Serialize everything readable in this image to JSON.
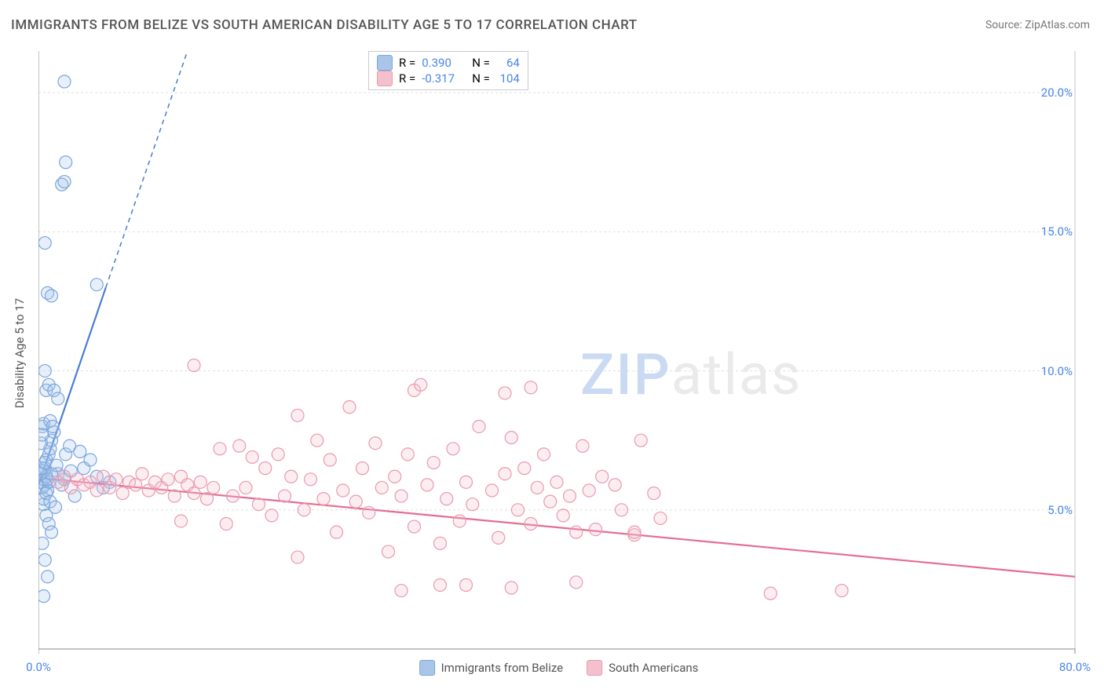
{
  "title": "IMMIGRANTS FROM BELIZE VS SOUTH AMERICAN DISABILITY AGE 5 TO 17 CORRELATION CHART",
  "source_label": "Source:",
  "source_name": "ZipAtlas.com",
  "ylabel": "Disability Age 5 to 17",
  "watermark_zip": "ZIP",
  "watermark_atlas": "atlas",
  "chart": {
    "type": "scatter",
    "xlim": [
      0,
      80
    ],
    "ylim": [
      0,
      21.5
    ],
    "x_ticks": [
      0,
      80
    ],
    "x_tick_labels": [
      "0.0%",
      "80.0%"
    ],
    "y_ticks": [
      5,
      10,
      15,
      20
    ],
    "y_tick_labels": [
      "5.0%",
      "10.0%",
      "15.0%",
      "20.0%"
    ],
    "grid_color": "#e0e0e0",
    "axis_color": "#888888",
    "background_color": "#ffffff",
    "marker_radius": 8,
    "marker_stroke_width": 1.2,
    "marker_fill_opacity": 0.28,
    "title_fontsize": 17,
    "label_fontsize": 15,
    "tick_color": "#4a86e8"
  },
  "series": [
    {
      "name": "Immigrants from Belize",
      "color_stroke": "#7aa6de",
      "color_fill": "#a9c6ea",
      "R": "0.390",
      "N": "64",
      "trend": {
        "solid": {
          "x1": 0,
          "y1": 5.9,
          "x2": 5.2,
          "y2": 13.0
        },
        "dashed": {
          "x1": 5.2,
          "y1": 13.0,
          "x2": 11.5,
          "y2": 21.5
        }
      },
      "line_color": "#4a7fd0",
      "line_width": 2.2,
      "dash": "6,5",
      "points": [
        [
          0.2,
          6.0
        ],
        [
          0.3,
          5.8
        ],
        [
          0.4,
          6.1
        ],
        [
          0.5,
          5.9
        ],
        [
          0.6,
          6.2
        ],
        [
          0.7,
          5.7
        ],
        [
          0.8,
          6.0
        ],
        [
          0.4,
          6.4
        ],
        [
          0.5,
          6.5
        ],
        [
          0.6,
          6.8
        ],
        [
          0.8,
          7.0
        ],
        [
          0.9,
          7.2
        ],
        [
          1.0,
          7.5
        ],
        [
          1.2,
          7.8
        ],
        [
          0.3,
          8.0
        ],
        [
          0.4,
          8.1
        ],
        [
          0.9,
          8.2
        ],
        [
          1.1,
          8.0
        ],
        [
          0.4,
          5.2
        ],
        [
          0.6,
          4.8
        ],
        [
          0.8,
          4.5
        ],
        [
          1.0,
          4.2
        ],
        [
          0.3,
          3.8
        ],
        [
          0.5,
          3.2
        ],
        [
          0.7,
          2.6
        ],
        [
          0.4,
          1.9
        ],
        [
          1.5,
          6.3
        ],
        [
          1.8,
          5.9
        ],
        [
          2.0,
          6.1
        ],
        [
          2.5,
          6.4
        ],
        [
          2.8,
          5.5
        ],
        [
          3.2,
          7.1
        ],
        [
          3.5,
          6.5
        ],
        [
          0.6,
          9.3
        ],
        [
          0.8,
          9.5
        ],
        [
          1.2,
          9.3
        ],
        [
          1.5,
          9.0
        ],
        [
          0.5,
          10.0
        ],
        [
          2.1,
          7.0
        ],
        [
          2.4,
          7.3
        ],
        [
          0.7,
          12.8
        ],
        [
          1.0,
          12.7
        ],
        [
          0.5,
          14.6
        ],
        [
          1.8,
          16.7
        ],
        [
          2.0,
          16.8
        ],
        [
          2.1,
          17.5
        ],
        [
          4.5,
          13.1
        ],
        [
          2.0,
          20.4
        ],
        [
          4.0,
          6.8
        ],
        [
          4.5,
          6.2
        ],
        [
          5.0,
          5.8
        ],
        [
          5.5,
          6.0
        ],
        [
          0.4,
          5.4
        ],
        [
          0.6,
          5.6
        ],
        [
          0.9,
          5.3
        ],
        [
          1.3,
          5.1
        ],
        [
          0.2,
          6.3
        ],
        [
          0.3,
          6.5
        ],
        [
          0.5,
          6.7
        ],
        [
          0.7,
          6.1
        ],
        [
          1.0,
          6.3
        ],
        [
          1.4,
          6.6
        ],
        [
          0.2,
          7.4
        ],
        [
          0.3,
          7.7
        ]
      ]
    },
    {
      "name": "South Americans",
      "color_stroke": "#e89ab0",
      "color_fill": "#f3c0ce",
      "R": "-0.317",
      "N": "104",
      "trend": {
        "solid": {
          "x1": 0,
          "y1": 6.15,
          "x2": 80,
          "y2": 2.6
        }
      },
      "line_color": "#e56d94",
      "line_width": 2.2,
      "points": [
        [
          1.5,
          6.0
        ],
        [
          2.0,
          6.2
        ],
        [
          2.5,
          5.8
        ],
        [
          3.0,
          6.1
        ],
        [
          3.5,
          5.9
        ],
        [
          4.0,
          6.0
        ],
        [
          4.5,
          5.7
        ],
        [
          5.0,
          6.2
        ],
        [
          5.5,
          5.8
        ],
        [
          6.0,
          6.1
        ],
        [
          6.5,
          5.6
        ],
        [
          7.0,
          6.0
        ],
        [
          7.5,
          5.9
        ],
        [
          8.0,
          6.3
        ],
        [
          8.5,
          5.7
        ],
        [
          9.0,
          6.0
        ],
        [
          9.5,
          5.8
        ],
        [
          10.0,
          6.1
        ],
        [
          10.5,
          5.5
        ],
        [
          11.0,
          6.2
        ],
        [
          11.5,
          5.9
        ],
        [
          12.0,
          5.6
        ],
        [
          12.5,
          6.0
        ],
        [
          13.0,
          5.4
        ],
        [
          13.5,
          5.8
        ],
        [
          14.0,
          7.2
        ],
        [
          14.5,
          4.5
        ],
        [
          15.0,
          5.5
        ],
        [
          15.5,
          7.3
        ],
        [
          16.0,
          5.8
        ],
        [
          16.5,
          6.9
        ],
        [
          17.0,
          5.2
        ],
        [
          17.5,
          6.5
        ],
        [
          18.0,
          4.8
        ],
        [
          18.5,
          7.0
        ],
        [
          19.0,
          5.5
        ],
        [
          19.5,
          6.2
        ],
        [
          20.0,
          8.4
        ],
        [
          20.5,
          5.0
        ],
        [
          21.0,
          6.1
        ],
        [
          21.5,
          7.5
        ],
        [
          22.0,
          5.4
        ],
        [
          22.5,
          6.8
        ],
        [
          23.0,
          4.2
        ],
        [
          23.5,
          5.7
        ],
        [
          24.0,
          8.7
        ],
        [
          24.5,
          5.3
        ],
        [
          25.0,
          6.5
        ],
        [
          25.5,
          4.9
        ],
        [
          26.0,
          7.4
        ],
        [
          26.5,
          5.8
        ],
        [
          27.0,
          3.5
        ],
        [
          27.5,
          6.2
        ],
        [
          28.0,
          5.5
        ],
        [
          28.5,
          7.0
        ],
        [
          29.0,
          4.4
        ],
        [
          29.0,
          9.3
        ],
        [
          30.0,
          5.9
        ],
        [
          30.5,
          6.7
        ],
        [
          31.0,
          3.8
        ],
        [
          31.5,
          5.4
        ],
        [
          32.0,
          7.2
        ],
        [
          32.5,
          4.6
        ],
        [
          33.0,
          6.0
        ],
        [
          33.5,
          5.2
        ],
        [
          34.0,
          8.0
        ],
        [
          12.0,
          10.2
        ],
        [
          35.0,
          5.7
        ],
        [
          35.5,
          4.0
        ],
        [
          36.0,
          6.3
        ],
        [
          36.5,
          7.6
        ],
        [
          37.0,
          5.0
        ],
        [
          37.5,
          6.5
        ],
        [
          38.0,
          4.5
        ],
        [
          38.5,
          5.8
        ],
        [
          39.0,
          7.0
        ],
        [
          39.5,
          5.3
        ],
        [
          40.0,
          6.0
        ],
        [
          40.5,
          4.8
        ],
        [
          41.0,
          5.5
        ],
        [
          29.5,
          9.5
        ],
        [
          42.0,
          7.3
        ],
        [
          42.5,
          5.7
        ],
        [
          43.0,
          4.3
        ],
        [
          43.5,
          6.2
        ],
        [
          36.0,
          9.2
        ],
        [
          44.5,
          5.9
        ],
        [
          45.0,
          5.0
        ],
        [
          36.5,
          2.2
        ],
        [
          46.0,
          4.1
        ],
        [
          46.0,
          4.2
        ],
        [
          46.5,
          7.5
        ],
        [
          38.0,
          9.4
        ],
        [
          47.5,
          5.6
        ],
        [
          48.0,
          4.7
        ],
        [
          28.0,
          2.1
        ],
        [
          31.0,
          2.3
        ],
        [
          33.0,
          2.3
        ],
        [
          41.5,
          2.4
        ],
        [
          41.5,
          4.2
        ],
        [
          56.5,
          2.0
        ],
        [
          62.0,
          2.1
        ],
        [
          11.0,
          4.6
        ],
        [
          20.0,
          3.3
        ]
      ]
    }
  ],
  "legend_top": {
    "r_label": "R =",
    "n_label": "N ="
  },
  "legend_bottom": [
    {
      "swatch_fill": "#a9c6ea",
      "swatch_stroke": "#7aa6de",
      "label": "Immigrants from Belize"
    },
    {
      "swatch_fill": "#f3c0ce",
      "swatch_stroke": "#e89ab0",
      "label": "South Americans"
    }
  ]
}
